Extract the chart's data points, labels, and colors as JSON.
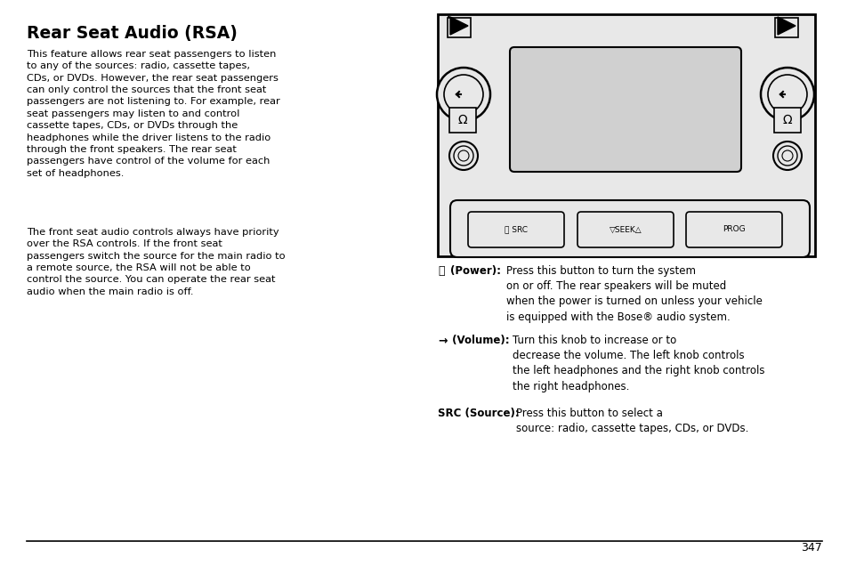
{
  "title": "Rear Seat Audio (RSA)",
  "para1": "This feature allows rear seat passengers to listen\nto any of the sources: radio, cassette tapes,\nCDs, or DVDs. However, the rear seat passengers\ncan only control the sources that the front seat\npassengers are not listening to. For example, rear\nseat passengers may listen to and control\ncassette tapes, CDs, or DVDs through the\nheadphones while the driver listens to the radio\nthrough the front speakers. The rear seat\npassengers have control of the volume for each\nset of headphones.",
  "para2": "The front seat audio controls always have priority\nover the RSA controls. If the front seat\npassengers switch the source for the main radio to\na remote source, the RSA will not be able to\ncontrol the source. You can operate the rear seat\naudio when the main radio is off.",
  "desc1_bold": "(Power): ",
  "desc1_text": "Press this button to turn the system\non or off. The rear speakers will be muted\nwhen the power is turned on unless your vehicle\nis equipped with the Bose® audio system.",
  "desc2_bold": " (Volume): ",
  "desc2_text": "Turn this knob to increase or to\ndecrease the volume. The left knob controls\nthe left headphones and the right knob controls\nthe right headphones.",
  "desc3_bold": "SRC (Source): ",
  "desc3_text": "Press this button to select a\nsource: radio, cassette tapes, CDs, or DVDs.",
  "page_number": "347",
  "bg_color": "#ffffff",
  "text_color": "#000000",
  "panel_bg": "#e8e8e8",
  "screen_bg": "#d0d0d0"
}
